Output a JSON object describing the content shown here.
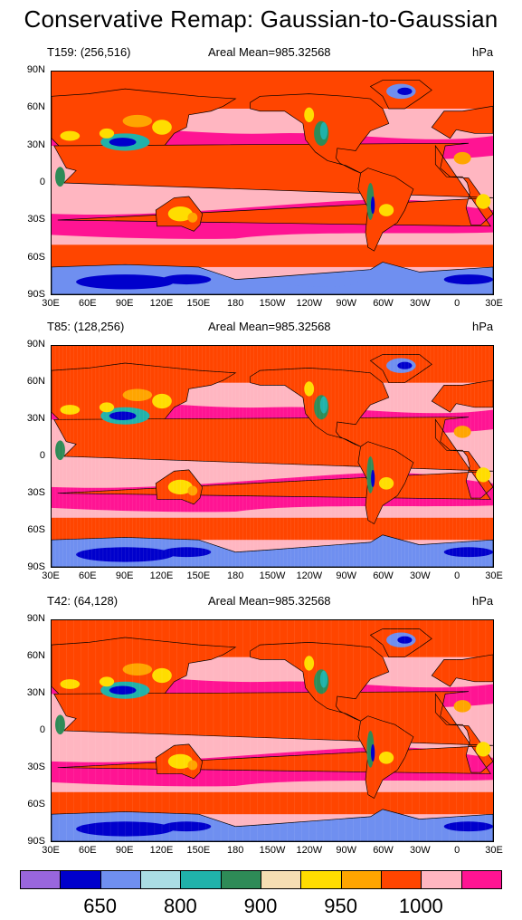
{
  "title": "Conservative Remap: Gaussian-to-Gaussian",
  "panels": [
    {
      "label": "T159: (256,516)",
      "mean": "Areal Mean=985.32568",
      "units": "hPa"
    },
    {
      "label": "T85: (128,256)",
      "mean": "Areal Mean=985.32568",
      "units": "hPa"
    },
    {
      "label": "T42: (64,128)",
      "mean": "Areal Mean=985.32568",
      "units": "hPa"
    }
  ],
  "y_ticks": [
    "90N",
    "60N",
    "30N",
    "0",
    "30S",
    "60S",
    "90S"
  ],
  "x_ticks": [
    "30E",
    "60E",
    "90E",
    "120E",
    "150E",
    "180",
    "150W",
    "120W",
    "90W",
    "60W",
    "30W",
    "0",
    "30E"
  ],
  "colorbar": {
    "colors": [
      "#9966dd",
      "#0000cc",
      "#6f8ff0",
      "#aadde4",
      "#20b2aa",
      "#2e8b57",
      "#f5deb3",
      "#ffdd00",
      "#ffa500",
      "#ff4500",
      "#ffb6c1",
      "#ff1493"
    ],
    "labels": [
      "650",
      "800",
      "900",
      "950",
      "1000"
    ]
  },
  "palette": {
    "ocean_pink": "#ffb6c1",
    "storm_magenta": "#ff1493",
    "orange_red": "#ff4500",
    "orange": "#ffa500",
    "yellow": "#ffdd00",
    "green": "#2e8b57",
    "teal": "#20b2aa",
    "light_blue": "#6f8ff0",
    "dark_blue": "#0000cc"
  }
}
